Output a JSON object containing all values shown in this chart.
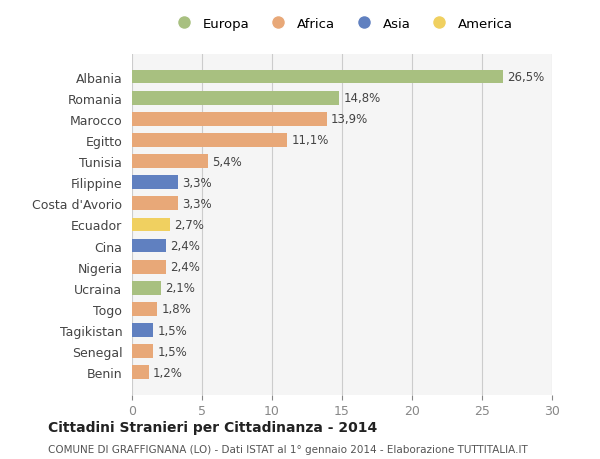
{
  "countries": [
    "Albania",
    "Romania",
    "Marocco",
    "Egitto",
    "Tunisia",
    "Filippine",
    "Costa d'Avorio",
    "Ecuador",
    "Cina",
    "Nigeria",
    "Ucraina",
    "Togo",
    "Tagikistan",
    "Senegal",
    "Benin"
  ],
  "values": [
    26.5,
    14.8,
    13.9,
    11.1,
    5.4,
    3.3,
    3.3,
    2.7,
    2.4,
    2.4,
    2.1,
    1.8,
    1.5,
    1.5,
    1.2
  ],
  "labels": [
    "26,5%",
    "14,8%",
    "13,9%",
    "11,1%",
    "5,4%",
    "3,3%",
    "3,3%",
    "2,7%",
    "2,4%",
    "2,4%",
    "2,1%",
    "1,8%",
    "1,5%",
    "1,5%",
    "1,2%"
  ],
  "continents": [
    "Europa",
    "Europa",
    "Africa",
    "Africa",
    "Africa",
    "Asia",
    "Africa",
    "America",
    "Asia",
    "Africa",
    "Europa",
    "Africa",
    "Asia",
    "Africa",
    "Africa"
  ],
  "colors": {
    "Europa": "#a8c080",
    "Africa": "#e8a878",
    "Asia": "#6080c0",
    "America": "#f0d060"
  },
  "title": "Cittadini Stranieri per Cittadinanza - 2014",
  "subtitle": "COMUNE DI GRAFFIGNANA (LO) - Dati ISTAT al 1° gennaio 2014 - Elaborazione TUTTITALIA.IT",
  "xlim": [
    0,
    30
  ],
  "xticks": [
    0,
    5,
    10,
    15,
    20,
    25,
    30
  ],
  "background_color": "#ffffff",
  "plot_bg_color": "#f5f5f5",
  "legend_order": [
    "Europa",
    "Africa",
    "Asia",
    "America"
  ]
}
